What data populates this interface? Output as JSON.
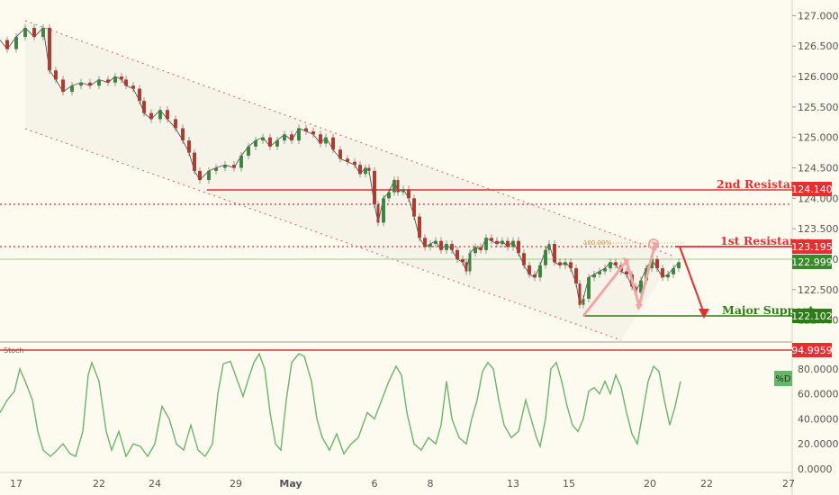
{
  "chart_data": {
    "type": "candlestick",
    "price_axis": {
      "ylim": [
        121.7,
        127.1
      ],
      "ticks": [
        "127.000",
        "126.500",
        "126.000",
        "125.500",
        "125.000",
        "124.500",
        "124.000",
        "123.500",
        "123.000",
        "122.500",
        "122.000"
      ]
    },
    "x_axis": {
      "ticks": [
        "17",
        "22",
        "24",
        "29",
        "May",
        "6",
        "8",
        "13",
        "15",
        "20",
        "22",
        "27"
      ]
    },
    "price_series": [
      [
        0,
        126.6
      ],
      [
        8,
        126.45
      ],
      [
        18,
        126.65
      ],
      [
        28,
        126.8
      ],
      [
        38,
        126.65
      ],
      [
        48,
        126.8
      ],
      [
        55,
        126.1
      ],
      [
        62,
        125.95
      ],
      [
        70,
        125.75
      ],
      [
        80,
        125.85
      ],
      [
        90,
        125.9
      ],
      [
        100,
        125.85
      ],
      [
        110,
        125.95
      ],
      [
        120,
        125.9
      ],
      [
        128,
        126.0
      ],
      [
        135,
        125.95
      ],
      [
        140,
        125.85
      ],
      [
        148,
        125.8
      ],
      [
        155,
        125.6
      ],
      [
        160,
        125.4
      ],
      [
        168,
        125.3
      ],
      [
        178,
        125.45
      ],
      [
        186,
        125.3
      ],
      [
        195,
        125.15
      ],
      [
        203,
        124.95
      ],
      [
        210,
        124.75
      ],
      [
        216,
        124.45
      ],
      [
        222,
        124.3
      ],
      [
        232,
        124.45
      ],
      [
        240,
        124.5
      ],
      [
        250,
        124.55
      ],
      [
        260,
        124.5
      ],
      [
        268,
        124.7
      ],
      [
        276,
        124.85
      ],
      [
        284,
        124.95
      ],
      [
        292,
        125.0
      ],
      [
        300,
        124.85
      ],
      [
        308,
        124.95
      ],
      [
        316,
        125.05
      ],
      [
        324,
        124.95
      ],
      [
        332,
        125.15
      ],
      [
        340,
        125.1
      ],
      [
        348,
        125.05
      ],
      [
        356,
        124.9
      ],
      [
        362,
        125.0
      ],
      [
        370,
        124.8
      ],
      [
        378,
        124.65
      ],
      [
        386,
        124.6
      ],
      [
        394,
        124.55
      ],
      [
        400,
        124.4
      ],
      [
        406,
        124.5
      ],
      [
        410,
        124.45
      ],
      [
        416,
        123.9
      ],
      [
        420,
        123.6
      ],
      [
        426,
        124.0
      ],
      [
        432,
        124.1
      ],
      [
        438,
        124.3
      ],
      [
        442,
        124.1
      ],
      [
        448,
        124.15
      ],
      [
        454,
        124.0
      ],
      [
        460,
        123.7
      ],
      [
        466,
        123.35
      ],
      [
        472,
        123.2
      ],
      [
        478,
        123.25
      ],
      [
        484,
        123.3
      ],
      [
        490,
        123.15
      ],
      [
        496,
        123.25
      ],
      [
        502,
        123.15
      ],
      [
        508,
        123.0
      ],
      [
        514,
        122.95
      ],
      [
        518,
        122.8
      ],
      [
        522,
        123.1
      ],
      [
        528,
        123.2
      ],
      [
        534,
        123.15
      ],
      [
        540,
        123.35
      ],
      [
        546,
        123.3
      ],
      [
        552,
        123.25
      ],
      [
        558,
        123.3
      ],
      [
        564,
        123.2
      ],
      [
        570,
        123.3
      ],
      [
        576,
        123.1
      ],
      [
        582,
        122.9
      ],
      [
        588,
        122.75
      ],
      [
        594,
        122.7
      ],
      [
        600,
        122.9
      ],
      [
        606,
        123.15
      ],
      [
        610,
        123.25
      ],
      [
        616,
        122.95
      ],
      [
        622,
        122.9
      ],
      [
        628,
        122.95
      ],
      [
        634,
        122.85
      ],
      [
        640,
        122.6
      ],
      [
        644,
        122.25
      ],
      [
        648,
        122.35
      ],
      [
        654,
        122.7
      ],
      [
        660,
        122.75
      ],
      [
        666,
        122.8
      ],
      [
        672,
        122.85
      ],
      [
        678,
        122.95
      ],
      [
        684,
        122.9
      ],
      [
        690,
        122.8
      ],
      [
        696,
        122.75
      ],
      [
        702,
        122.55
      ],
      [
        706,
        122.45
      ],
      [
        712,
        122.65
      ],
      [
        718,
        122.85
      ],
      [
        724,
        123.0
      ],
      [
        730,
        122.85
      ],
      [
        736,
        122.7
      ],
      [
        742,
        122.75
      ],
      [
        748,
        122.85
      ],
      [
        754,
        122.95
      ]
    ],
    "levels": [
      {
        "name": "2nd Resistance",
        "value": 124.14,
        "label": "124.140",
        "color": "#e62f2f"
      },
      {
        "name": "1st Resistance",
        "value": 123.195,
        "label": "123.195",
        "color": "#e62f2f"
      },
      {
        "name": "Major Support",
        "value": 122.102,
        "label": "122.102",
        "color": "#2e7d14"
      }
    ],
    "current_price": {
      "label": "122.999",
      "color": "#3a8a2b"
    },
    "fib_label": "100.00%",
    "stoch": {
      "title": "Stoch",
      "ylim": [
        0,
        100
      ],
      "ticks": [
        "80.0000",
        "60.0000",
        "40.0000",
        "20.0000",
        "0.0000"
      ],
      "level": {
        "value": 94.9959,
        "label": "94.9959"
      },
      "legend": "%D",
      "values": [
        [
          0,
          45
        ],
        [
          8,
          55
        ],
        [
          16,
          62
        ],
        [
          22,
          80
        ],
        [
          28,
          70
        ],
        [
          36,
          55
        ],
        [
          42,
          30
        ],
        [
          48,
          15
        ],
        [
          56,
          10
        ],
        [
          62,
          14
        ],
        [
          70,
          20
        ],
        [
          78,
          12
        ],
        [
          84,
          10
        ],
        [
          92,
          30
        ],
        [
          98,
          75
        ],
        [
          102,
          85
        ],
        [
          110,
          70
        ],
        [
          118,
          30
        ],
        [
          124,
          15
        ],
        [
          132,
          30
        ],
        [
          140,
          10
        ],
        [
          148,
          20
        ],
        [
          156,
          18
        ],
        [
          164,
          10
        ],
        [
          172,
          20
        ],
        [
          180,
          50
        ],
        [
          188,
          40
        ],
        [
          196,
          20
        ],
        [
          204,
          15
        ],
        [
          212,
          35
        ],
        [
          220,
          15
        ],
        [
          228,
          10
        ],
        [
          236,
          20
        ],
        [
          242,
          60
        ],
        [
          248,
          84
        ],
        [
          256,
          86
        ],
        [
          264,
          70
        ],
        [
          270,
          58
        ],
        [
          276,
          72
        ],
        [
          282,
          85
        ],
        [
          288,
          92
        ],
        [
          294,
          80
        ],
        [
          300,
          45
        ],
        [
          306,
          20
        ],
        [
          312,
          15
        ],
        [
          318,
          55
        ],
        [
          324,
          85
        ],
        [
          332,
          92
        ],
        [
          338,
          90
        ],
        [
          346,
          70
        ],
        [
          352,
          40
        ],
        [
          358,
          25
        ],
        [
          366,
          15
        ],
        [
          374,
          28
        ],
        [
          382,
          12
        ],
        [
          390,
          20
        ],
        [
          398,
          25
        ],
        [
          408,
          45
        ],
        [
          416,
          40
        ],
        [
          424,
          55
        ],
        [
          432,
          70
        ],
        [
          440,
          82
        ],
        [
          446,
          75
        ],
        [
          452,
          45
        ],
        [
          460,
          20
        ],
        [
          468,
          15
        ],
        [
          476,
          25
        ],
        [
          484,
          20
        ],
        [
          490,
          35
        ],
        [
          496,
          70
        ],
        [
          502,
          40
        ],
        [
          510,
          25
        ],
        [
          518,
          20
        ],
        [
          524,
          40
        ],
        [
          530,
          55
        ],
        [
          536,
          78
        ],
        [
          542,
          85
        ],
        [
          548,
          80
        ],
        [
          554,
          55
        ],
        [
          560,
          35
        ],
        [
          568,
          25
        ],
        [
          576,
          30
        ],
        [
          584,
          55
        ],
        [
          590,
          40
        ],
        [
          596,
          25
        ],
        [
          600,
          18
        ],
        [
          606,
          40
        ],
        [
          612,
          80
        ],
        [
          618,
          85
        ],
        [
          624,
          70
        ],
        [
          630,
          50
        ],
        [
          636,
          35
        ],
        [
          642,
          30
        ],
        [
          648,
          40
        ],
        [
          654,
          62
        ],
        [
          660,
          65
        ],
        [
          666,
          60
        ],
        [
          672,
          70
        ],
        [
          678,
          60
        ],
        [
          684,
          75
        ],
        [
          690,
          65
        ],
        [
          696,
          45
        ],
        [
          702,
          28
        ],
        [
          708,
          20
        ],
        [
          714,
          45
        ],
        [
          720,
          70
        ],
        [
          726,
          82
        ],
        [
          732,
          78
        ],
        [
          738,
          55
        ],
        [
          744,
          35
        ],
        [
          750,
          50
        ],
        [
          756,
          70
        ]
      ]
    },
    "annotations": {
      "second_resistance": "2nd Resistance",
      "first_resistance": "1st Resistance",
      "major_support": "Major Support"
    }
  }
}
